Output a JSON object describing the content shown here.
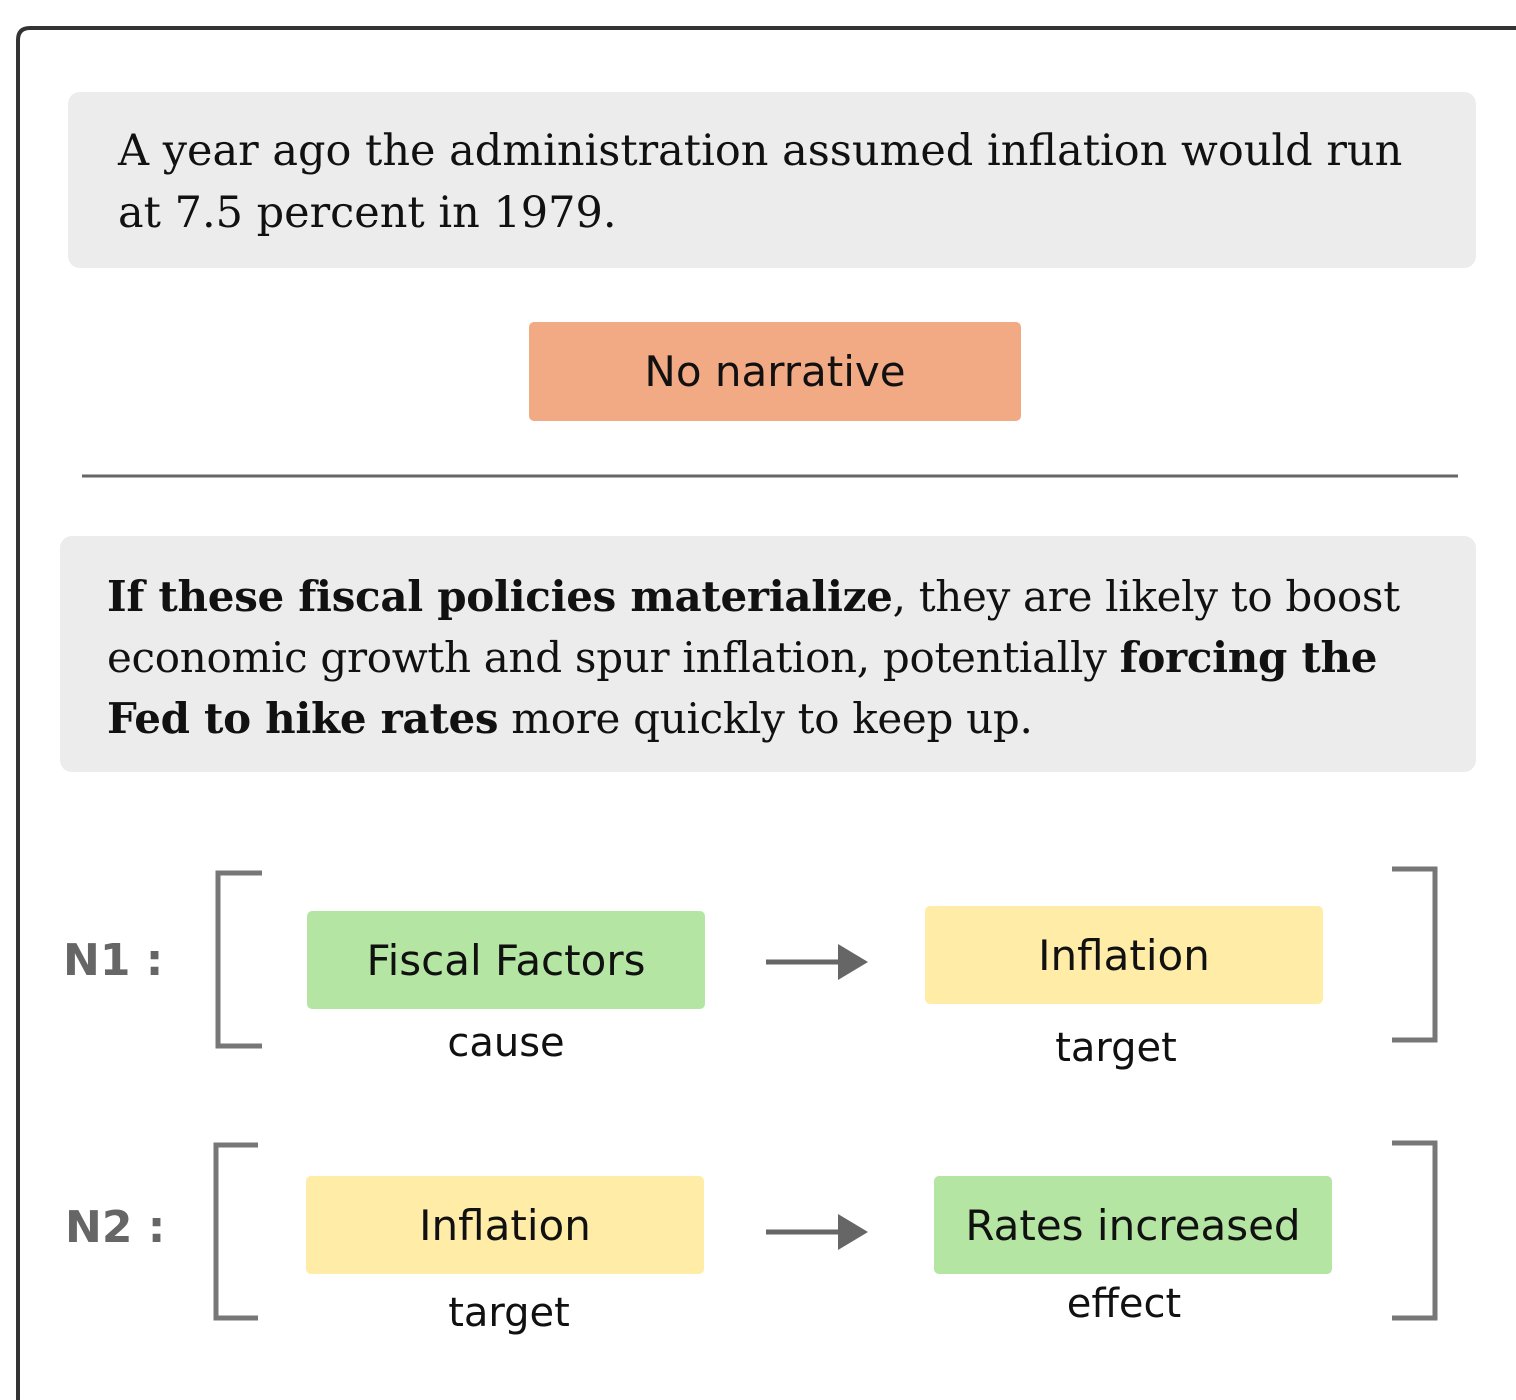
{
  "example_1": {
    "text": "A year ago the administration assumed inflation would run at 7.5 percent in 1979.",
    "label": "No narrative"
  },
  "example_2": {
    "segments": [
      {
        "text": "If these fiscal policies materialize",
        "bold": true
      },
      {
        "text": ", they are likely to boost economic growth and spur inflation, potentially ",
        "bold": false
      },
      {
        "text": "forcing the Fed to hike rates",
        "bold": true
      },
      {
        "text": " more quickly to keep up.",
        "bold": false
      }
    ]
  },
  "narratives": [
    {
      "name": "N1 :",
      "from": {
        "label": "Fiscal Factors",
        "role": "cause"
      },
      "to": {
        "label": "Inflation",
        "role": "target"
      }
    },
    {
      "name": "N2 :",
      "from": {
        "label": "Inflation",
        "role": "target"
      },
      "to": {
        "label": "Rates increased",
        "role": "effect"
      }
    }
  ]
}
